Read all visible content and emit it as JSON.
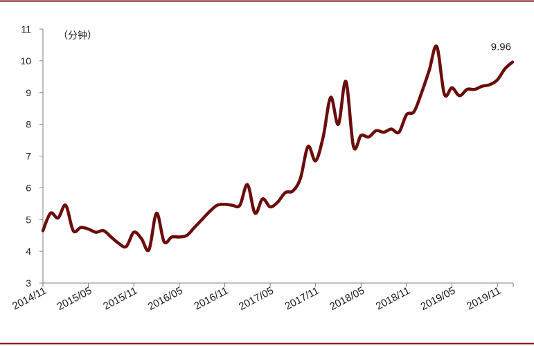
{
  "chart_data": {
    "type": "line",
    "title": "",
    "xlabel": "",
    "ylabel": "",
    "unit_label": "（分钟）",
    "ylim": [
      3,
      11
    ],
    "y_ticks": [
      "3",
      "4",
      "5",
      "6",
      "7",
      "8",
      "9",
      "10",
      "11"
    ],
    "x_tick_labels": [
      "2014/11",
      "2015/05",
      "2015/11",
      "2016/05",
      "2016/11",
      "2017/05",
      "2017/11",
      "2018/05",
      "2018/11",
      "2019/05",
      "2019/11"
    ],
    "grid": false,
    "legend": "none",
    "colors": {
      "line": "#6b0d0d",
      "border": "#7a1010",
      "axis": "#7f7f7f"
    },
    "series": [
      {
        "values": [
          4.65,
          5.2,
          5.05,
          5.45,
          4.65,
          4.75,
          4.7,
          4.6,
          4.65,
          4.45,
          4.25,
          4.15,
          4.6,
          4.4,
          4.05,
          5.2,
          4.3,
          4.45,
          4.45,
          4.5,
          4.75,
          5.0,
          5.25,
          5.45,
          5.48,
          5.45,
          5.45,
          6.1,
          5.2,
          5.65,
          5.4,
          5.55,
          5.85,
          5.9,
          6.3,
          7.3,
          6.85,
          7.6,
          8.85,
          8.0,
          9.35,
          7.3,
          7.65,
          7.6,
          7.8,
          7.75,
          7.85,
          7.75,
          8.3,
          8.4,
          9.0,
          9.7,
          10.45,
          8.95,
          9.15,
          8.9,
          9.1,
          9.1,
          9.2,
          9.25,
          9.4,
          9.75,
          9.96
        ]
      }
    ],
    "annotations": [
      {
        "text": "9.96",
        "x_index": 62,
        "y": 9.96
      }
    ]
  }
}
